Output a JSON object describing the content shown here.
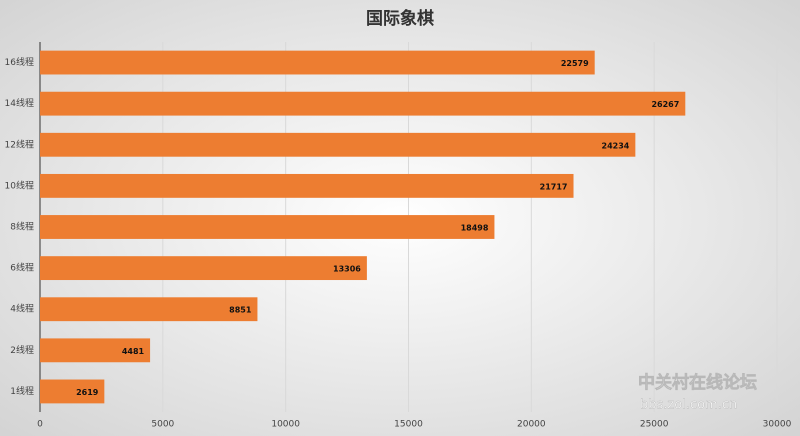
{
  "chart_data": {
    "type": "bar",
    "orientation": "horizontal",
    "title": "国际象棋",
    "categories": [
      "1线程",
      "2线程",
      "4线程",
      "6线程",
      "8线程",
      "10线程",
      "12线程",
      "14线程",
      "16线程"
    ],
    "values": [
      2619,
      4481,
      8851,
      13306,
      18498,
      21717,
      24234,
      26267,
      22579
    ],
    "color": "#ed7d31",
    "xlim": [
      0,
      30000
    ],
    "xticks": [
      0,
      5000,
      10000,
      15000,
      20000,
      25000,
      30000
    ],
    "grid": true
  },
  "watermark": {
    "line1": "中关村在线论坛",
    "line2": "bbs.zol.com.cn"
  }
}
